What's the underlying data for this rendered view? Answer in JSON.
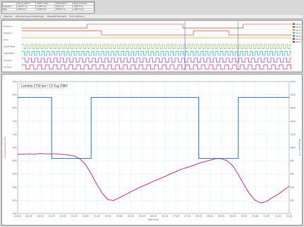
{
  "readout": {
    "rows": [
      [
        "",
        "Bonne Zeit 0",
        "0081 13 Bor",
        "1000 Zeit 4",
        "Bing 19:00:00"
      ],
      [
        "Ergebnis",
        "1500.0 ms",
        "15000 ms",
        "4650 ms",
        "58970 ms"
      ],
      [
        "Bas",
        "2000 Dur",
        "1500 Flow",
        "50000 ms",
        "1000 Flow"
      ]
    ]
  },
  "tabs": [
    "Allgemein",
    "Zeitachse Sensordarstellungen",
    "Statusbits Messwerte",
    "Trend Auflösung"
  ],
  "logic": {
    "channels": [
      "Ereignis 1",
      "Ereignis 2",
      "Zone",
      "Signal Kanal",
      "Signal Block",
      "LA Kanal",
      "LA Kanal"
    ],
    "legend": [
      "Kanal 1",
      "Kanal 2",
      "Kanal 3",
      "Kanal 4",
      "Kanal 5",
      "Kanal 6",
      "Kanal 7"
    ]
  },
  "chart": {
    "title": "Lambda 1750 bar / 13 Aug 2009",
    "xlabel": "Zeit [min]",
    "ylabel_left": "Lambdasonde [mV]",
    "ylabel_right": "Temperatur [°C]"
  },
  "chart_data": {
    "type": "line",
    "x": [
      0,
      0.5,
      1,
      1.5,
      2,
      2.5,
      3,
      3.5,
      4,
      4.5,
      5,
      5.5,
      6,
      6.5,
      7,
      7.5,
      8,
      8.5,
      9,
      9.5,
      10,
      10.5,
      11,
      11.5,
      12,
      12.5,
      13,
      13.5,
      14,
      14.5,
      15,
      15.5,
      16,
      16.5,
      17,
      17.5,
      18,
      18.5,
      19,
      19.5,
      20,
      20.5,
      21,
      21.5,
      22,
      22.5,
      23,
      23.5,
      24
    ],
    "series": [
      {
        "axis": "left",
        "color": "#c0187a",
        "values": [
          625,
          625,
          626,
          625,
          627,
          626,
          626,
          626,
          624,
          622,
          618,
          607,
          585,
          550,
          510,
          475,
          452,
          450,
          460,
          471,
          482,
          493,
          503,
          512,
          522,
          531,
          540,
          550,
          559,
          568,
          575,
          582,
          590,
          596,
          602,
          608,
          608,
          600,
          582,
          548,
          510,
          475,
          450,
          440,
          446,
          460,
          472,
          488,
          503
        ]
      },
      {
        "axis": "right",
        "color": "#1b5fa8",
        "values": [
          1760,
          1760,
          1760,
          1760,
          1760,
          1760,
          835,
          835,
          835,
          835,
          835,
          835,
          835,
          1760,
          1760,
          1760,
          1760,
          1760,
          1760,
          1760,
          1760,
          1760,
          1760,
          1760,
          1760,
          1760,
          1760,
          1760,
          1760,
          1760,
          1760,
          1760,
          835,
          835,
          835,
          835,
          835,
          835,
          835,
          1760,
          1760,
          1760,
          1760,
          1760,
          1760,
          1760,
          1760,
          1760,
          1760
        ]
      }
    ],
    "ylim_left": [
      400,
      900
    ],
    "ylim_right": [
      0,
      2000
    ],
    "xlim": [
      0,
      24
    ],
    "x_ticks": [
      "00:00",
      "00:30",
      "01:00",
      "01:30",
      "02:00",
      "02:30",
      "03:00",
      "03:30",
      "04:00",
      "04:30",
      "05:00",
      "05:30",
      "06:00",
      "06:30",
      "07:00",
      "07:30",
      "08:00",
      "08:30",
      "09:00",
      "09:30",
      "10:00",
      "10:30",
      "11:00",
      "11:30",
      "12:00"
    ],
    "y_ticks_left": [
      "400",
      "450",
      "500",
      "550",
      "600",
      "650",
      "700",
      "750",
      "800",
      "850",
      "900"
    ],
    "y_ticks_right": [
      "0",
      "200",
      "400",
      "600",
      "800",
      "1000",
      "1200",
      "1400",
      "1600",
      "1800",
      "2000"
    ],
    "grid": true
  }
}
